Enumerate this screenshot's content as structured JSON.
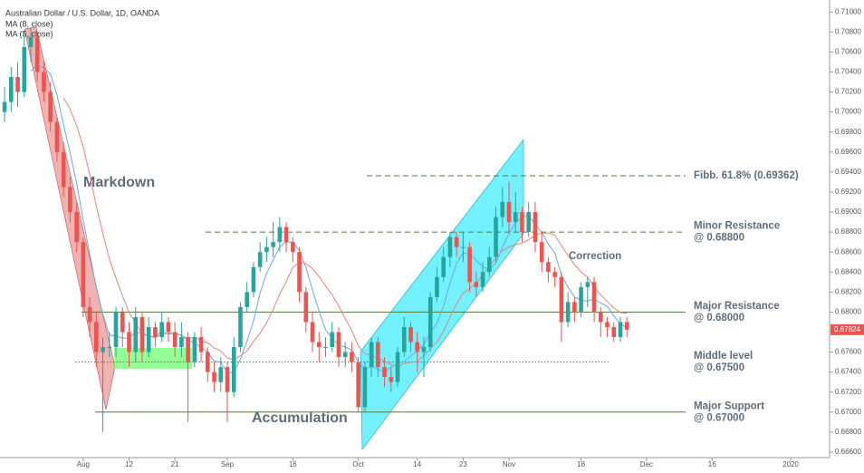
{
  "chart_data": {
    "type": "candlestick",
    "title": "Australian Dollar / U.S. Dollar, 1D, OANDA",
    "indicators": [
      "MA (8, close)",
      "MA (5, close)"
    ],
    "up_color": "#26a69a",
    "down_color": "#ef5350",
    "open": [
      0.7,
      0.701,
      0.7035,
      0.702,
      0.7065,
      0.7075,
      0.704,
      0.702,
      0.699,
      0.696,
      0.6925,
      0.69,
      0.687,
      0.6805,
      0.679,
      0.676,
      0.6765,
      0.6765,
      0.68,
      0.678,
      0.676,
      0.6795,
      0.676,
      0.6785,
      0.6775,
      0.679,
      0.678,
      0.6765,
      0.6775,
      0.675,
      0.6775,
      0.676,
      0.674,
      0.673,
      0.6745,
      0.672,
      0.6765,
      0.6805,
      0.682,
      0.6845,
      0.686,
      0.6865,
      0.687,
      0.6885,
      0.687,
      0.686,
      0.682,
      0.679,
      0.677,
      0.6765,
      0.6765,
      0.678,
      0.6755,
      0.676,
      0.675,
      0.6705,
      0.6745,
      0.677,
      0.6745,
      0.6735,
      0.673,
      0.676,
      0.6785,
      0.677,
      0.676,
      0.6765,
      0.6815,
      0.6835,
      0.6855,
      0.6875,
      0.6865,
      0.6865,
      0.683,
      0.6825,
      0.684,
      0.6855,
      0.6895,
      0.691,
      0.689,
      0.69,
      0.688,
      0.69,
      0.687,
      0.685,
      0.684,
      0.6835,
      0.679,
      0.681,
      0.68,
      0.6825,
      0.683,
      0.68,
      0.679,
      0.6785,
      0.6775,
      0.679
    ],
    "high": [
      0.7025,
      0.7045,
      0.705,
      0.708,
      0.7085,
      0.708,
      0.705,
      0.703,
      0.6995,
      0.697,
      0.6935,
      0.691,
      0.6875,
      0.6815,
      0.68,
      0.6775,
      0.678,
      0.6805,
      0.6805,
      0.679,
      0.6805,
      0.68,
      0.6795,
      0.679,
      0.68,
      0.6795,
      0.679,
      0.679,
      0.678,
      0.678,
      0.6785,
      0.6765,
      0.675,
      0.6755,
      0.675,
      0.6775,
      0.681,
      0.683,
      0.685,
      0.687,
      0.6875,
      0.689,
      0.6895,
      0.689,
      0.6875,
      0.6865,
      0.6825,
      0.68,
      0.678,
      0.6775,
      0.679,
      0.6785,
      0.677,
      0.677,
      0.6755,
      0.675,
      0.6775,
      0.6775,
      0.6755,
      0.6745,
      0.6765,
      0.6795,
      0.679,
      0.678,
      0.6775,
      0.682,
      0.6845,
      0.6865,
      0.688,
      0.688,
      0.688,
      0.687,
      0.684,
      0.685,
      0.6865,
      0.6905,
      0.6925,
      0.693,
      0.692,
      0.6905,
      0.691,
      0.691,
      0.688,
      0.6855,
      0.6845,
      0.684,
      0.682,
      0.6815,
      0.683,
      0.6835,
      0.6835,
      0.6805,
      0.6795,
      0.679,
      0.6795,
      0.6795
    ],
    "low": [
      0.699,
      0.7,
      0.7005,
      0.7015,
      0.705,
      0.703,
      0.701,
      0.698,
      0.695,
      0.6915,
      0.689,
      0.686,
      0.6795,
      0.6775,
      0.6745,
      0.668,
      0.6755,
      0.6755,
      0.6765,
      0.6745,
      0.675,
      0.675,
      0.6755,
      0.6765,
      0.677,
      0.677,
      0.6755,
      0.6755,
      0.669,
      0.6745,
      0.675,
      0.673,
      0.672,
      0.672,
      0.669,
      0.6715,
      0.676,
      0.68,
      0.6815,
      0.684,
      0.685,
      0.6855,
      0.686,
      0.686,
      0.685,
      0.681,
      0.678,
      0.676,
      0.675,
      0.6755,
      0.676,
      0.6745,
      0.6745,
      0.674,
      0.67,
      0.67,
      0.6735,
      0.6735,
      0.6725,
      0.672,
      0.6725,
      0.6755,
      0.676,
      0.674,
      0.6735,
      0.676,
      0.681,
      0.683,
      0.6845,
      0.6855,
      0.685,
      0.682,
      0.6815,
      0.682,
      0.6835,
      0.685,
      0.6885,
      0.688,
      0.688,
      0.687,
      0.6875,
      0.686,
      0.684,
      0.683,
      0.6825,
      0.677,
      0.6785,
      0.679,
      0.6795,
      0.6805,
      0.679,
      0.6775,
      0.6775,
      0.677,
      0.677,
      0.6775
    ],
    "close": [
      0.701,
      0.7035,
      0.702,
      0.7065,
      0.7075,
      0.704,
      0.702,
      0.699,
      0.696,
      0.6925,
      0.69,
      0.687,
      0.6805,
      0.679,
      0.676,
      0.6765,
      0.6765,
      0.68,
      0.678,
      0.676,
      0.6795,
      0.676,
      0.6785,
      0.6775,
      0.679,
      0.678,
      0.6765,
      0.6775,
      0.675,
      0.6775,
      0.676,
      0.674,
      0.673,
      0.6745,
      0.672,
      0.6765,
      0.6805,
      0.682,
      0.6845,
      0.686,
      0.6865,
      0.687,
      0.6885,
      0.687,
      0.686,
      0.682,
      0.679,
      0.677,
      0.6765,
      0.6765,
      0.678,
      0.6755,
      0.676,
      0.675,
      0.6705,
      0.6745,
      0.677,
      0.6745,
      0.6735,
      0.673,
      0.676,
      0.6785,
      0.677,
      0.676,
      0.6765,
      0.6815,
      0.6835,
      0.6855,
      0.6875,
      0.6865,
      0.6865,
      0.683,
      0.6825,
      0.684,
      0.6855,
      0.6895,
      0.691,
      0.689,
      0.69,
      0.688,
      0.69,
      0.687,
      0.685,
      0.684,
      0.6835,
      0.679,
      0.681,
      0.68,
      0.6825,
      0.683,
      0.68,
      0.679,
      0.6785,
      0.6775,
      0.679,
      0.67824
    ],
    "xlim": [
      -0.7,
      125.8
    ],
    "xticks": [
      {
        "value": 12,
        "label": "Aug"
      },
      {
        "value": 19,
        "label": "12"
      },
      {
        "value": 26,
        "label": "21"
      },
      {
        "value": 34,
        "label": "Sep"
      },
      {
        "value": 44,
        "label": "16"
      },
      {
        "value": 54,
        "label": "Oct"
      },
      {
        "value": 63,
        "label": "14"
      },
      {
        "value": 70,
        "label": "23"
      },
      {
        "value": 77,
        "label": "Nov"
      },
      {
        "value": 88,
        "label": "18"
      },
      {
        "value": 98,
        "label": "Dec"
      },
      {
        "value": 108,
        "label": "16"
      },
      {
        "value": 120,
        "label": "2020"
      }
    ],
    "ylim": [
      0.66545,
      0.7112
    ],
    "yticks": [
      {
        "value": 0.71,
        "label": "0.71000"
      },
      {
        "value": 0.708,
        "label": "0.70800"
      },
      {
        "value": 0.706,
        "label": "0.70600"
      },
      {
        "value": 0.704,
        "label": "0.70400"
      },
      {
        "value": 0.702,
        "label": "0.70200"
      },
      {
        "value": 0.7,
        "label": "0.70000"
      },
      {
        "value": 0.698,
        "label": "0.69800"
      },
      {
        "value": 0.696,
        "label": "0.69600"
      },
      {
        "value": 0.694,
        "label": "0.69400"
      },
      {
        "value": 0.692,
        "label": "0.69200"
      },
      {
        "value": 0.69,
        "label": "0.69000"
      },
      {
        "value": 0.688,
        "label": "0.68800"
      },
      {
        "value": 0.686,
        "label": "0.68600"
      },
      {
        "value": 0.684,
        "label": "0.68400"
      },
      {
        "value": 0.682,
        "label": "0.68200"
      },
      {
        "value": 0.68,
        "label": "0.68000"
      },
      {
        "value": 0.678,
        "label": "0.67800"
      },
      {
        "value": 0.676,
        "label": "0.67600"
      },
      {
        "value": 0.674,
        "label": "0.67400"
      },
      {
        "value": 0.672,
        "label": "0.67200"
      },
      {
        "value": 0.67,
        "label": "0.67000"
      },
      {
        "value": 0.668,
        "label": "0.66800"
      },
      {
        "value": 0.666,
        "label": "0.66600"
      }
    ],
    "levels": [
      {
        "value": 0.69362,
        "label": [
          "Fibb. 61.8% (0.69362)"
        ],
        "style": "dashed"
      },
      {
        "value": 0.688,
        "label": [
          "Minor Resistance",
          "@ 0.68800"
        ],
        "style": "dashed"
      },
      {
        "value": 0.68,
        "label": [
          "Major Resistance",
          "@ 0.68000"
        ],
        "style": "solid"
      },
      {
        "value": 0.675,
        "label": [
          "Middle level",
          "@ 0.67500"
        ],
        "style": "dotted"
      },
      {
        "value": 0.67,
        "label": [
          "Major Support",
          "@ 0.67000"
        ],
        "style": "solid"
      }
    ],
    "annotations": [
      "Markdown",
      "Accumulation",
      "Correction"
    ]
  }
}
